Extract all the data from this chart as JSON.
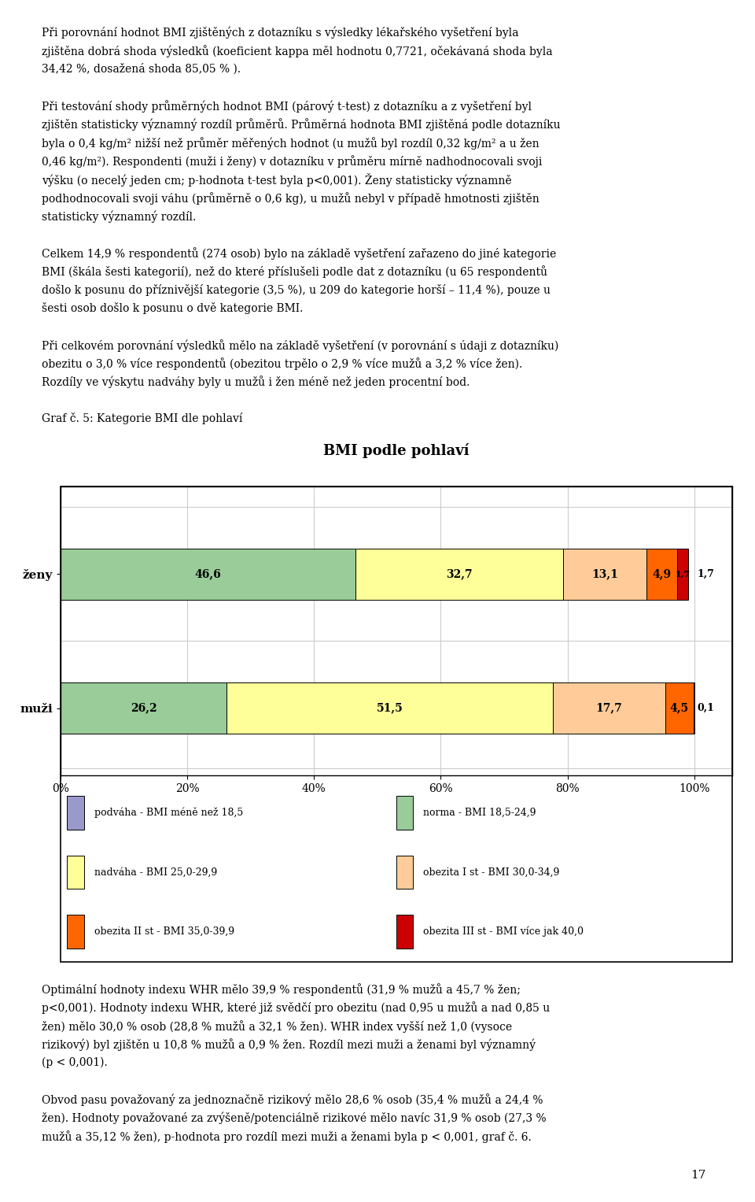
{
  "title": "BMI podle pohlaví",
  "categories": [
    "ženy",
    "muži"
  ],
  "zeny_values": [
    0.0,
    46.6,
    32.7,
    13.1,
    4.9,
    1.7
  ],
  "muzi_values": [
    0.0,
    26.2,
    51.5,
    17.7,
    4.5,
    0.1
  ],
  "colors": [
    "#9999CC",
    "#99CC99",
    "#FFFF99",
    "#FFCC99",
    "#FF6600",
    "#CC0000"
  ],
  "legend_labels": [
    "podváha - BMI méně než 18,5",
    "norma - BMI 18,5-24,9",
    "nadváha - BMI 25,0-29,9",
    "obezita I st - BMI 30,0-34,9",
    "obezita II st - BMI 35,0-39,9",
    "obezita III st - BMI více jak 40,0"
  ],
  "xtick_labels": [
    "0%",
    "20%",
    "40%",
    "60%",
    "80%",
    "100%"
  ],
  "xtick_values": [
    0,
    20,
    40,
    60,
    80,
    100
  ],
  "graph_caption": "Graf č. 5: Kategorie BMI dle pohlaví",
  "page_number": "17",
  "page_lines": [
    "Při porovnání hodnot BMI zjištěných z dotazníku s výsledky lékařského vyšetření byla",
    "zjištěna dobrá shoda výsledků (koeficient kappa měl hodnotu 0,7721, očekávaná shoda byla",
    "34,42 %, dosažená shoda 85,05 % ).",
    "",
    "Při testování shody průměrných hodnot BMI (párový t-test) z dotazníku a z vyšetření byl",
    "zjištěn statisticky významný rozdíl průměrů. Průměrná hodnota BMI zjištěná podle dotazníku",
    "byla o 0,4 kg/m² nižší než průměr měřených hodnot (u mužů byl rozdíl 0,32 kg/m² a u žen",
    "0,46 kg/m²). Respondenti (muži i ženy) v dotazníku v průměru mírně nadhodnocovali svoji",
    "výšku (o necelý jeden cm; p-hodnota t-test byla p<0,001). Ženy statisticky významně",
    "podhodnocovali svoji váhu (průměrně o 0,6 kg), u mužů nebyl v případě hmotnosti zjištěn",
    "statisticky významný rozdíl.",
    "",
    "Celkem 14,9 % respondentů (274 osob) bylo na základě vyšetření zařazeno do jiné kategorie",
    "BMI (škála šesti kategorií), než do které příslušeli podle dat z dotazníku (u 65 respondentů",
    "došlo k posunu do příznivější kategorie (3,5 %), u 209 do kategorie horší – 11,4 %), pouze u",
    "šesti osob došlo k posunu o dvě kategorie BMI.",
    "",
    "Při celkovém porovnání výsledků mělo na základě vyšetření (v porovnání s údaji z dotazníku)",
    "obezitu o 3,0 % více respondentů (obezitou trpělo o 2,9 % více mužů a 3,2 % více žen).",
    "Rozdíly ve výskytu nadváhy byly u mužů i žen méně než jeden procentní bod.",
    "",
    "Graf č. 5: Kategorie BMI dle pohlaví"
  ],
  "bottom_lines": [
    "Optimální hodnoty indexu WHR mělo 39,9 % respondentů (31,9 % mužů a 45,7 % žen;",
    "p<0,001). Hodnoty indexu WHR, které již svědčí pro obezitu (nad 0,95 u mužů a nad 0,85 u",
    "žen) mělo 30,0 % osob (28,8 % mužů a 32,1 % žen). WHR index vyšší než 1,0 (vysoce",
    "rizikový) byl zjištěn u 10,8 % mužů a 0,9 % žen. Rozdíl mezi muži a ženami byl významný",
    "(p < 0,001).",
    "",
    "Obvod pasu považovaný za jednoznačně rizikový mělo 28,6 % osob (35,4 % mužů a 24,4 %",
    "žen). Hodnoty považované za zvýšeně/potenciálně rizikové mělo navíc 31,9 % osob (27,3 %",
    "mužů a 35,12 % žen), p-hodnota pro rozdíl mezi muži a ženami byla p < 0,001, graf č. 6."
  ]
}
